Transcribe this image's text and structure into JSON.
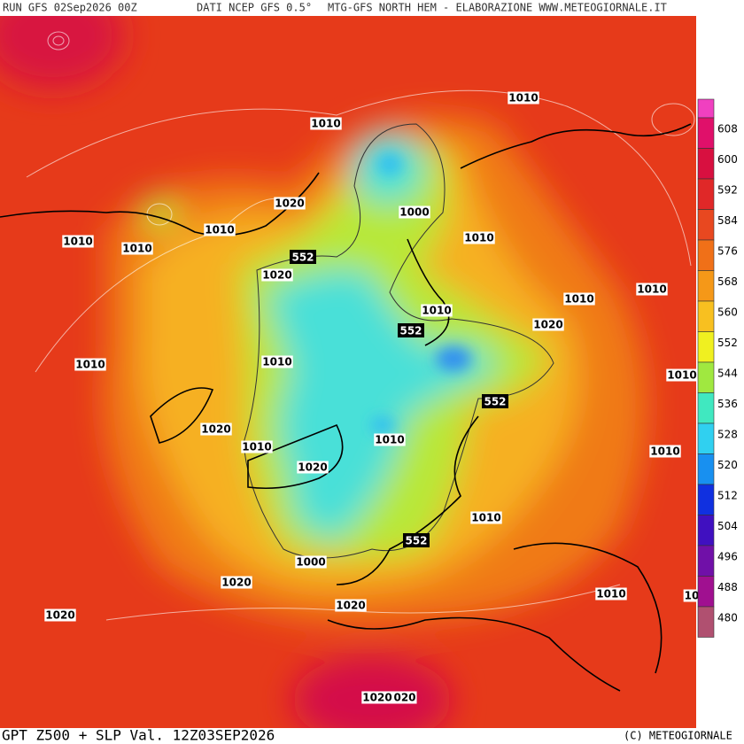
{
  "header": {
    "run": "RUN GFS 02Sep2026 00Z",
    "source": "DATI NCEP GFS 0.5°",
    "credit": "MTG-GFS NORTH HEM - ELABORAZIONE WWW.METEOGIORNALE.IT"
  },
  "footer": {
    "title": "GPT Z500 + SLP Val. 12Z03SEP2026",
    "copyright": "(C) METEOGIORNALE"
  },
  "colorbar": {
    "ticks": [
      608,
      600,
      592,
      584,
      576,
      568,
      560,
      552,
      544,
      536,
      528,
      520,
      512,
      504,
      496,
      488,
      480
    ],
    "colors": [
      "#f040c0",
      "#e0106a",
      "#d81040",
      "#e02828",
      "#e84820",
      "#f07018",
      "#f59818",
      "#f8c020",
      "#f0f020",
      "#a0e840",
      "#40e8c0",
      "#30d0f0",
      "#1890f0",
      "#1030e0",
      "#4010c0",
      "#7010a8",
      "#a01090",
      "#b05070"
    ]
  },
  "map_labels": [
    "1010",
    "1010",
    "1020",
    "1000",
    "1010",
    "1010",
    "1010",
    "1010",
    "552",
    "1020",
    "1010",
    "1010",
    "1010",
    "552",
    "1020",
    "1010",
    "1010",
    "1010",
    "552",
    "1020",
    "1010",
    "1010",
    "1010",
    "1020",
    "1010",
    "552",
    "1000",
    "1020",
    "1010",
    "1020",
    "1020",
    "1020",
    "020",
    "10"
  ]
}
